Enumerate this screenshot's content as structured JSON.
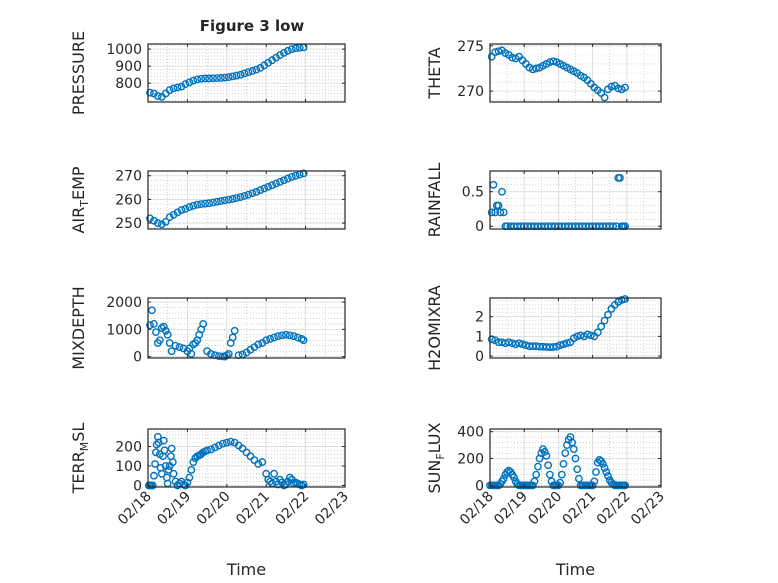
{
  "title": "Figure 3 low",
  "colors": {
    "marker": "#0072BD",
    "axis": "#262626",
    "grid": "#b8b8b8",
    "background": "#ffffff"
  },
  "chart_data": [
    {
      "type": "scatter",
      "ylabel": "PRESSURE",
      "xlabel": "",
      "xlim": [
        0,
        5
      ],
      "xtick_labels": [
        "02/18",
        "02/19",
        "02/20",
        "02/21",
        "02/22",
        "02/23"
      ],
      "ylim": [
        690,
        1030
      ],
      "yticks": [
        800,
        900,
        1000
      ],
      "ytick_labels": [
        "800",
        "900",
        "1000"
      ],
      "grid": true,
      "x": [
        0.05,
        0.15,
        0.25,
        0.35,
        0.45,
        0.55,
        0.65,
        0.75,
        0.85,
        0.95,
        1.05,
        1.15,
        1.25,
        1.35,
        1.45,
        1.55,
        1.65,
        1.75,
        1.85,
        1.95,
        2.05,
        2.15,
        2.25,
        2.35,
        2.45,
        2.55,
        2.65,
        2.75,
        2.85,
        2.95,
        3.05,
        3.15,
        3.25,
        3.35,
        3.45,
        3.55,
        3.65,
        3.75,
        3.85,
        3.95
      ],
      "y": [
        745,
        740,
        725,
        720,
        740,
        760,
        770,
        775,
        780,
        795,
        805,
        815,
        822,
        826,
        828,
        828,
        829,
        830,
        831,
        833,
        836,
        840,
        845,
        850,
        858,
        865,
        872,
        880,
        890,
        905,
        920,
        935,
        950,
        965,
        978,
        990,
        1000,
        1005,
        1008,
        1010
      ]
    },
    {
      "type": "scatter",
      "ylabel": "THETA",
      "xlabel": "",
      "xlim": [
        0,
        5
      ],
      "xtick_labels": [
        "02/18",
        "02/19",
        "02/20",
        "02/21",
        "02/22",
        "02/23"
      ],
      "ylim": [
        268.8,
        275.2
      ],
      "yticks": [
        270,
        275
      ],
      "ytick_labels": [
        "270",
        "275"
      ],
      "grid": true,
      "x": [
        0.05,
        0.15,
        0.25,
        0.35,
        0.45,
        0.55,
        0.65,
        0.75,
        0.85,
        0.95,
        1.05,
        1.15,
        1.25,
        1.35,
        1.45,
        1.55,
        1.65,
        1.75,
        1.85,
        1.95,
        2.05,
        2.15,
        2.25,
        2.35,
        2.45,
        2.55,
        2.65,
        2.75,
        2.85,
        2.95,
        3.05,
        3.15,
        3.25,
        3.35,
        3.45,
        3.55,
        3.65,
        3.75,
        3.85,
        3.95
      ],
      "y": [
        273.8,
        274.3,
        274.4,
        274.5,
        274.2,
        274.0,
        273.7,
        273.6,
        273.8,
        273.4,
        273.0,
        272.6,
        272.4,
        272.5,
        272.6,
        272.8,
        273.0,
        273.2,
        273.3,
        273.2,
        273.0,
        272.8,
        272.6,
        272.4,
        272.2,
        272.0,
        271.7,
        271.5,
        271.2,
        270.8,
        270.4,
        270.1,
        269.8,
        269.3,
        270.2,
        270.5,
        270.6,
        270.3,
        270.2,
        270.4
      ]
    },
    {
      "type": "scatter",
      "ylabel": "AIR_TEMP",
      "xlabel": "",
      "xlim": [
        0,
        5
      ],
      "xtick_labels": [
        "02/18",
        "02/19",
        "02/20",
        "02/21",
        "02/22",
        "02/23"
      ],
      "ylim": [
        247.5,
        272
      ],
      "yticks": [
        250,
        260,
        270
      ],
      "ytick_labels": [
        "250",
        "260",
        "270"
      ],
      "grid": true,
      "x": [
        0.05,
        0.15,
        0.25,
        0.35,
        0.45,
        0.55,
        0.65,
        0.75,
        0.85,
        0.95,
        1.05,
        1.15,
        1.25,
        1.35,
        1.45,
        1.55,
        1.65,
        1.75,
        1.85,
        1.95,
        2.05,
        2.15,
        2.25,
        2.35,
        2.45,
        2.55,
        2.65,
        2.75,
        2.85,
        2.95,
        3.05,
        3.15,
        3.25,
        3.35,
        3.45,
        3.55,
        3.65,
        3.75,
        3.85,
        3.95
      ],
      "y": [
        252,
        251,
        250,
        249.5,
        250.5,
        252.5,
        253.5,
        254.5,
        255.5,
        256,
        256.8,
        257.3,
        257.8,
        258,
        258.2,
        258.4,
        258.7,
        259,
        259.3,
        259.6,
        259.9,
        260.2,
        260.6,
        261,
        261.5,
        262,
        262.6,
        263.2,
        263.9,
        264.6,
        265.3,
        266,
        266.7,
        267.4,
        268.1,
        268.8,
        269.5,
        270,
        270.5,
        271
      ]
    },
    {
      "type": "scatter",
      "ylabel": "RAINFALL",
      "xlabel": "",
      "xlim": [
        0,
        5
      ],
      "xtick_labels": [
        "02/18",
        "02/19",
        "02/20",
        "02/21",
        "02/22",
        "02/23"
      ],
      "ylim": [
        -0.04,
        0.8
      ],
      "yticks": [
        0,
        0.5
      ],
      "ytick_labels": [
        "0",
        "0.5"
      ],
      "grid": true,
      "x": [
        0.05,
        0.1,
        0.15,
        0.2,
        0.25,
        0.3,
        0.35,
        0.4,
        0.45,
        0.5,
        0.6,
        0.7,
        0.8,
        0.9,
        1.0,
        1.1,
        1.2,
        1.3,
        1.4,
        1.5,
        1.6,
        1.7,
        1.8,
        1.9,
        2.0,
        2.1,
        2.2,
        2.3,
        2.4,
        2.5,
        2.6,
        2.7,
        2.8,
        2.9,
        3.0,
        3.1,
        3.2,
        3.3,
        3.4,
        3.5,
        3.6,
        3.7,
        3.75,
        3.8,
        3.85,
        3.9,
        3.95
      ],
      "y": [
        0.2,
        0.6,
        0.2,
        0.3,
        0.3,
        0.2,
        0.5,
        0.2,
        0,
        0,
        0,
        0,
        0,
        0,
        0,
        0,
        0,
        0,
        0,
        0,
        0,
        0,
        0,
        0,
        0,
        0,
        0,
        0,
        0,
        0,
        0,
        0,
        0,
        0,
        0,
        0,
        0,
        0,
        0,
        0,
        0,
        0,
        0.7,
        0.7,
        0,
        0,
        0
      ]
    },
    {
      "type": "scatter",
      "ylabel": "MIXDEPTH",
      "xlabel": "",
      "xlim": [
        0,
        5
      ],
      "xtick_labels": [
        "02/18",
        "02/19",
        "02/20",
        "02/21",
        "02/22",
        "02/23"
      ],
      "ylim": [
        -50,
        2150
      ],
      "yticks": [
        0,
        1000,
        2000
      ],
      "ytick_labels": [
        "0",
        "1000",
        "2000"
      ],
      "grid": true,
      "x": [
        0.05,
        0.1,
        0.15,
        0.2,
        0.25,
        0.3,
        0.35,
        0.4,
        0.45,
        0.5,
        0.55,
        0.6,
        0.7,
        0.8,
        0.9,
        1.0,
        1.05,
        1.1,
        1.15,
        1.2,
        1.25,
        1.3,
        1.35,
        1.4,
        1.5,
        1.6,
        1.7,
        1.8,
        1.9,
        1.95,
        2.0,
        2.05,
        2.1,
        2.15,
        2.2,
        2.3,
        2.4,
        2.5,
        2.6,
        2.7,
        2.8,
        2.9,
        3.0,
        3.1,
        3.2,
        3.3,
        3.4,
        3.5,
        3.6,
        3.7,
        3.8,
        3.9,
        3.95
      ],
      "y": [
        1150,
        1700,
        1200,
        900,
        500,
        600,
        1050,
        1100,
        950,
        800,
        500,
        200,
        400,
        350,
        300,
        200,
        300,
        100,
        450,
        500,
        600,
        800,
        1000,
        1200,
        200,
        100,
        50,
        20,
        10,
        0,
        50,
        100,
        500,
        700,
        950,
        50,
        80,
        150,
        250,
        350,
        450,
        500,
        600,
        650,
        700,
        750,
        780,
        800,
        780,
        750,
        700,
        650,
        600
      ]
    },
    {
      "type": "scatter",
      "ylabel": "H2OMIXRA",
      "xlabel": "",
      "xlim": [
        0,
        5
      ],
      "xtick_labels": [
        "02/18",
        "02/19",
        "02/20",
        "02/21",
        "02/22",
        "02/23"
      ],
      "ylim": [
        -0.1,
        2.95
      ],
      "yticks": [
        0,
        1,
        2
      ],
      "ytick_labels": [
        "0",
        "1",
        "2"
      ],
      "grid": true,
      "x": [
        0.05,
        0.15,
        0.25,
        0.35,
        0.45,
        0.55,
        0.65,
        0.75,
        0.85,
        0.95,
        1.05,
        1.15,
        1.25,
        1.35,
        1.45,
        1.55,
        1.65,
        1.75,
        1.85,
        1.95,
        2.05,
        2.15,
        2.25,
        2.35,
        2.45,
        2.55,
        2.65,
        2.75,
        2.85,
        2.95,
        3.05,
        3.15,
        3.25,
        3.35,
        3.45,
        3.55,
        3.65,
        3.75,
        3.85,
        3.95
      ],
      "y": [
        0.85,
        0.8,
        0.7,
        0.7,
        0.65,
        0.7,
        0.65,
        0.6,
        0.65,
        0.6,
        0.55,
        0.5,
        0.5,
        0.5,
        0.48,
        0.47,
        0.46,
        0.45,
        0.46,
        0.48,
        0.55,
        0.6,
        0.65,
        0.7,
        0.9,
        1.0,
        1.05,
        1.0,
        1.1,
        1.05,
        1.0,
        1.2,
        1.5,
        1.8,
        2.1,
        2.4,
        2.6,
        2.75,
        2.85,
        2.9
      ]
    },
    {
      "type": "scatter",
      "ylabel": "TERR_MSL",
      "xlabel": "Time",
      "xlim": [
        0,
        5
      ],
      "xtick_labels": [
        "02/18",
        "02/19",
        "02/20",
        "02/21",
        "02/22",
        "02/23"
      ],
      "ylim": [
        -8,
        290
      ],
      "yticks": [
        0,
        100,
        200
      ],
      "ytick_labels": [
        "0",
        "100",
        "200"
      ],
      "grid": true,
      "x": [
        0.02,
        0.05,
        0.08,
        0.12,
        0.15,
        0.18,
        0.2,
        0.22,
        0.25,
        0.27,
        0.3,
        0.32,
        0.35,
        0.38,
        0.4,
        0.42,
        0.45,
        0.48,
        0.5,
        0.52,
        0.55,
        0.58,
        0.6,
        0.63,
        0.65,
        0.7,
        0.75,
        0.8,
        0.85,
        0.9,
        0.95,
        1.0,
        1.05,
        1.1,
        1.15,
        1.2,
        1.25,
        1.3,
        1.35,
        1.4,
        1.45,
        1.5,
        1.6,
        1.7,
        1.8,
        1.9,
        2.0,
        2.1,
        2.2,
        2.3,
        2.4,
        2.5,
        2.6,
        2.7,
        2.8,
        2.9,
        3.0,
        3.05,
        3.1,
        3.15,
        3.2,
        3.25,
        3.3,
        3.35,
        3.4,
        3.45,
        3.5,
        3.55,
        3.6,
        3.65,
        3.7,
        3.75,
        3.8,
        3.85,
        3.9,
        3.95
      ],
      "y": [
        0,
        0,
        0,
        0,
        50,
        110,
        170,
        210,
        250,
        220,
        160,
        90,
        60,
        150,
        230,
        180,
        100,
        40,
        10,
        80,
        100,
        150,
        190,
        120,
        60,
        20,
        0,
        10,
        20,
        5,
        0,
        15,
        40,
        80,
        120,
        140,
        150,
        155,
        160,
        170,
        175,
        180,
        185,
        195,
        205,
        215,
        220,
        225,
        220,
        205,
        190,
        170,
        150,
        130,
        110,
        120,
        60,
        30,
        20,
        10,
        60,
        20,
        5,
        30,
        15,
        0,
        5,
        20,
        40,
        30,
        10,
        15,
        10,
        5,
        0,
        5
      ]
    },
    {
      "type": "scatter",
      "ylabel": "SUN_FLUX",
      "xlabel": "Time",
      "xlim": [
        0,
        5
      ],
      "xtick_labels": [
        "02/18",
        "02/19",
        "02/20",
        "02/21",
        "02/22",
        "02/23"
      ],
      "ylim": [
        -12,
        420
      ],
      "yticks": [
        0,
        200,
        400
      ],
      "ytick_labels": [
        "0",
        "200",
        "400"
      ],
      "grid": true,
      "x": [
        0.0,
        0.05,
        0.1,
        0.15,
        0.2,
        0.25,
        0.3,
        0.35,
        0.4,
        0.45,
        0.5,
        0.55,
        0.6,
        0.65,
        0.7,
        0.75,
        0.8,
        0.85,
        0.9,
        0.95,
        1.0,
        1.05,
        1.1,
        1.15,
        1.2,
        1.25,
        1.3,
        1.35,
        1.4,
        1.45,
        1.5,
        1.55,
        1.6,
        1.65,
        1.7,
        1.75,
        1.8,
        1.85,
        1.9,
        1.95,
        2.0,
        2.05,
        2.1,
        2.15,
        2.2,
        2.25,
        2.3,
        2.35,
        2.4,
        2.45,
        2.5,
        2.55,
        2.6,
        2.65,
        2.7,
        2.75,
        2.8,
        2.85,
        2.9,
        2.95,
        3.0,
        3.05,
        3.1,
        3.15,
        3.2,
        3.25,
        3.3,
        3.35,
        3.4,
        3.45,
        3.5,
        3.55,
        3.6,
        3.65,
        3.7,
        3.75,
        3.8,
        3.85,
        3.9,
        3.95
      ],
      "y": [
        0,
        0,
        0,
        0,
        0,
        0,
        10,
        30,
        50,
        80,
        100,
        110,
        100,
        80,
        60,
        30,
        10,
        0,
        0,
        0,
        0,
        0,
        0,
        0,
        0,
        0,
        30,
        80,
        140,
        200,
        240,
        270,
        250,
        220,
        150,
        80,
        30,
        0,
        0,
        0,
        0,
        20,
        80,
        160,
        240,
        300,
        340,
        360,
        320,
        270,
        200,
        120,
        50,
        0,
        0,
        0,
        0,
        0,
        0,
        0,
        0,
        30,
        100,
        170,
        190,
        180,
        160,
        130,
        100,
        70,
        40,
        20,
        10,
        0,
        0,
        0,
        0,
        0,
        0,
        0
      ]
    }
  ],
  "panels": [
    {
      "ylabel_main": "PRESSURE",
      "ylabel_sub": "",
      "ylabel_tail": ""
    },
    {
      "ylabel_main": "THETA",
      "ylabel_sub": "",
      "ylabel_tail": ""
    },
    {
      "ylabel_main": "AIR",
      "ylabel_sub": "T",
      "ylabel_tail": "EMP"
    },
    {
      "ylabel_main": "RAINFALL",
      "ylabel_sub": "",
      "ylabel_tail": ""
    },
    {
      "ylabel_main": "MIXDEPTH",
      "ylabel_sub": "",
      "ylabel_tail": ""
    },
    {
      "ylabel_main": "H2OMIXRA",
      "ylabel_sub": "",
      "ylabel_tail": ""
    },
    {
      "ylabel_main": "TERR",
      "ylabel_sub": "M",
      "ylabel_tail": "SL"
    },
    {
      "ylabel_main": "SUN",
      "ylabel_sub": "F",
      "ylabel_tail": "LUX"
    }
  ]
}
